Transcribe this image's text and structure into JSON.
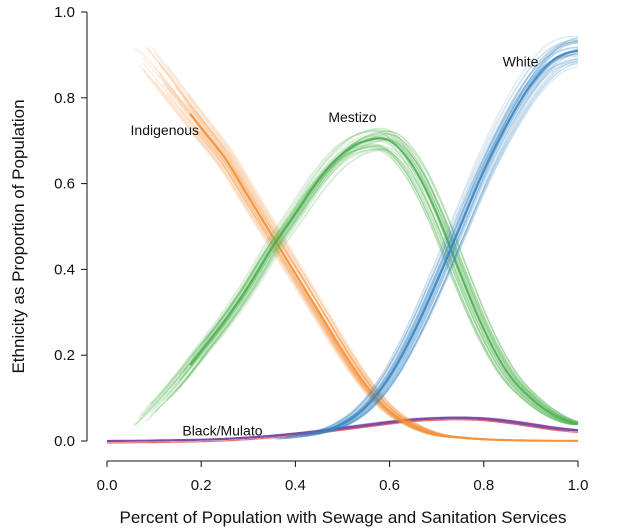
{
  "chart_data": {
    "type": "line",
    "title": "",
    "xlabel": "Percent of Population with Sewage and Sanitation Services",
    "ylabel": "Ethnicity as Proportion of Population",
    "xlim": [
      0.0,
      1.0
    ],
    "ylim": [
      0.0,
      1.0
    ],
    "x_ticks": [
      "0.0",
      "0.2",
      "0.4",
      "0.6",
      "0.8",
      "1.0"
    ],
    "y_ticks": [
      "0.0",
      "0.2",
      "0.4",
      "0.6",
      "0.8",
      "1.0"
    ],
    "grid": false,
    "legend": "none (series labeled directly on curves)",
    "note_lines": "each series drawn as a bundle of many semi-transparent simulated curves",
    "x": [
      0.0,
      0.05,
      0.1,
      0.15,
      0.2,
      0.25,
      0.3,
      0.35,
      0.4,
      0.45,
      0.5,
      0.55,
      0.6,
      0.65,
      0.7,
      0.75,
      0.8,
      0.85,
      0.9,
      0.95,
      1.0
    ],
    "series": [
      {
        "name": "Indigenous",
        "color": "#f5923a",
        "x_start": 0.05,
        "values": [
          null,
          0.93,
          0.87,
          0.8,
          0.73,
          0.66,
          0.57,
          0.48,
          0.39,
          0.3,
          0.21,
          0.13,
          0.07,
          0.035,
          0.015,
          0.008,
          0.004,
          0.002,
          0.001,
          0.0005,
          0.0003
        ]
      },
      {
        "name": "Mestizo",
        "color": "#4caf50",
        "x_start": 0.05,
        "values": [
          null,
          0.03,
          0.08,
          0.14,
          0.21,
          0.28,
          0.36,
          0.45,
          0.53,
          0.61,
          0.67,
          0.7,
          0.7,
          0.64,
          0.53,
          0.39,
          0.26,
          0.16,
          0.1,
          0.06,
          0.04
        ]
      },
      {
        "name": "White",
        "color": "#3a86c4",
        "x_start": 0.35,
        "values": [
          null,
          null,
          null,
          null,
          null,
          null,
          null,
          0.005,
          0.01,
          0.02,
          0.04,
          0.08,
          0.15,
          0.25,
          0.37,
          0.5,
          0.63,
          0.74,
          0.83,
          0.89,
          0.91
        ]
      },
      {
        "name": "Black/Mulato",
        "color": "#7a4da8",
        "accent_color": "#e0303a",
        "x_start": 0.0,
        "values": [
          0.0,
          0.0005,
          0.001,
          0.002,
          0.003,
          0.005,
          0.008,
          0.012,
          0.017,
          0.023,
          0.03,
          0.037,
          0.044,
          0.05,
          0.053,
          0.054,
          0.052,
          0.046,
          0.038,
          0.03,
          0.025
        ]
      }
    ],
    "labels": [
      {
        "text": "Indigenous",
        "x": 0.05,
        "y": 0.725
      },
      {
        "text": "Mestizo",
        "x": 0.47,
        "y": 0.755
      },
      {
        "text": "White",
        "x": 0.84,
        "y": 0.885
      },
      {
        "text": "Black/Mulato",
        "x": 0.16,
        "y": 0.025
      }
    ]
  }
}
